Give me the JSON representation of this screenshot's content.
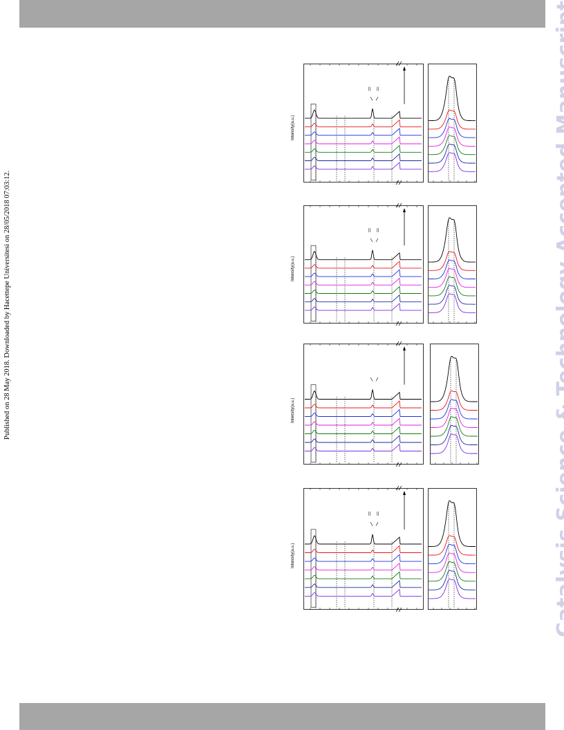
{
  "header_bar": {
    "color": "#a6a6a6"
  },
  "footer_bar": {
    "color": "#a6a6a6"
  },
  "side_note": "Published on 28 May 2018. Downloaded by Hacettepe Universitesi on 28/05/2018 07:03:12.",
  "watermark": "Catalysis Science & Technology Accepted Manuscript",
  "figure": {
    "series_colors": [
      "#000000",
      "#e8141b",
      "#1d2fe0",
      "#e11ee1",
      "#0f7a12",
      "#1b2a9a",
      "#7a2ae8"
    ],
    "panels": [
      {
        "ylabel": "Intensity(a.u.)",
        "tick_marks": [
          "||",
          "||"
        ]
      },
      {
        "ylabel": "Intensity(a.u.)",
        "tick_marks": [
          "||",
          "||"
        ]
      },
      {
        "ylabel": "Intensity(a.u.)",
        "tick_marks": []
      },
      {
        "ylabel": "Intensity(a.u.)",
        "tick_marks": [
          "||",
          "||"
        ]
      }
    ]
  }
}
